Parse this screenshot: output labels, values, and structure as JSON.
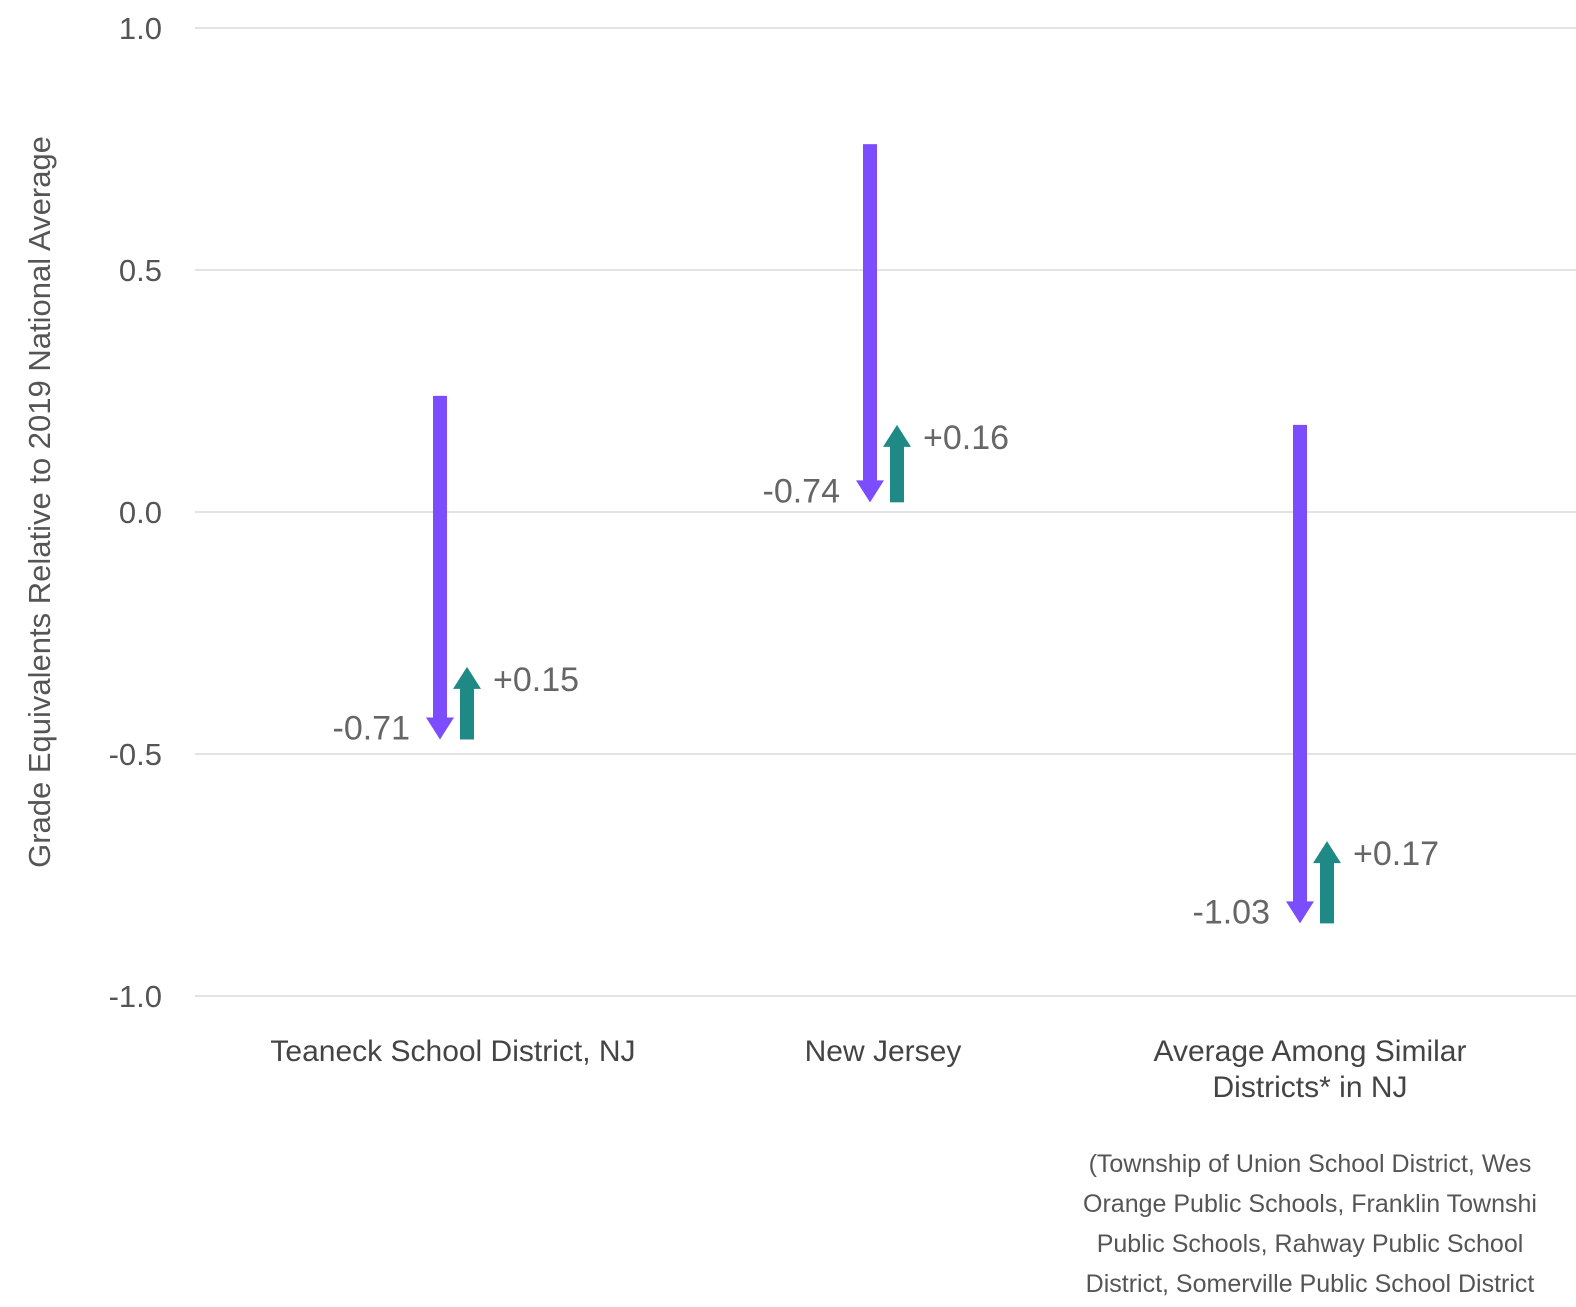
{
  "chart_data": {
    "type": "arrow",
    "ylabel": "Grade Equivalents Relative to 2019 National Average",
    "ylim": [
      -1.0,
      1.0
    ],
    "yticks": [
      "1.0",
      "0.5",
      "0.0",
      "-0.5",
      "-1.0"
    ],
    "ytick_values": [
      1.0,
      0.5,
      0.0,
      -0.5,
      -1.0
    ],
    "grid": true,
    "colors": {
      "decline": "#7c4dff",
      "recovery": "#1f8a85"
    },
    "categories": [
      {
        "label_lines": [
          "Teaneck School District, NJ"
        ],
        "start": 0.24,
        "decline": -0.71,
        "recovery": 0.15,
        "decline_label": "-0.71",
        "recovery_label": "+0.15"
      },
      {
        "label_lines": [
          "New Jersey"
        ],
        "start": 0.76,
        "decline": -0.74,
        "recovery": 0.16,
        "decline_label": "-0.74",
        "recovery_label": "+0.16"
      },
      {
        "label_lines": [
          "Average Among Similar",
          "Districts* in NJ"
        ],
        "start": 0.18,
        "decline": -1.03,
        "recovery": 0.17,
        "decline_label": "-1.03",
        "recovery_label": "+0.17"
      }
    ],
    "footnote_lines": [
      "(Township of Union School District, Wes",
      "Orange Public Schools, Franklin Townshi",
      "Public Schools, Rahway Public School",
      "District, Somerville Public School District"
    ]
  }
}
